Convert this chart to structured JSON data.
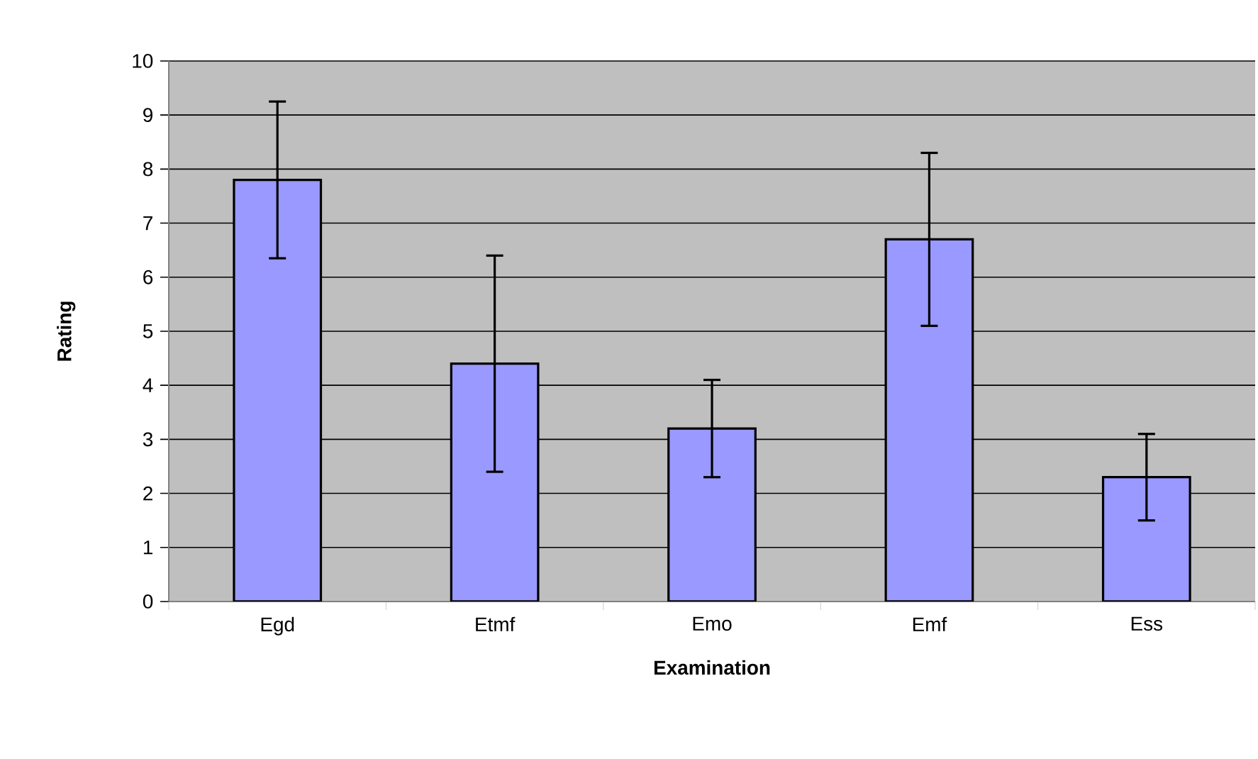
{
  "chart_data": {
    "type": "bar",
    "xlabel": "Examination",
    "ylabel": "Rating",
    "categories": [
      "Egd",
      "Etmf",
      "Emo",
      "Emf",
      "Ess"
    ],
    "values": [
      7.8,
      4.4,
      3.2,
      6.7,
      2.3
    ],
    "errors": [
      1.45,
      2.0,
      0.9,
      1.6,
      0.8
    ],
    "color": "#9999ff",
    "ylim": [
      0,
      10
    ],
    "yticks": [
      0,
      1,
      2,
      3,
      4,
      5,
      6,
      7,
      8,
      9,
      10
    ],
    "grid": "y"
  }
}
